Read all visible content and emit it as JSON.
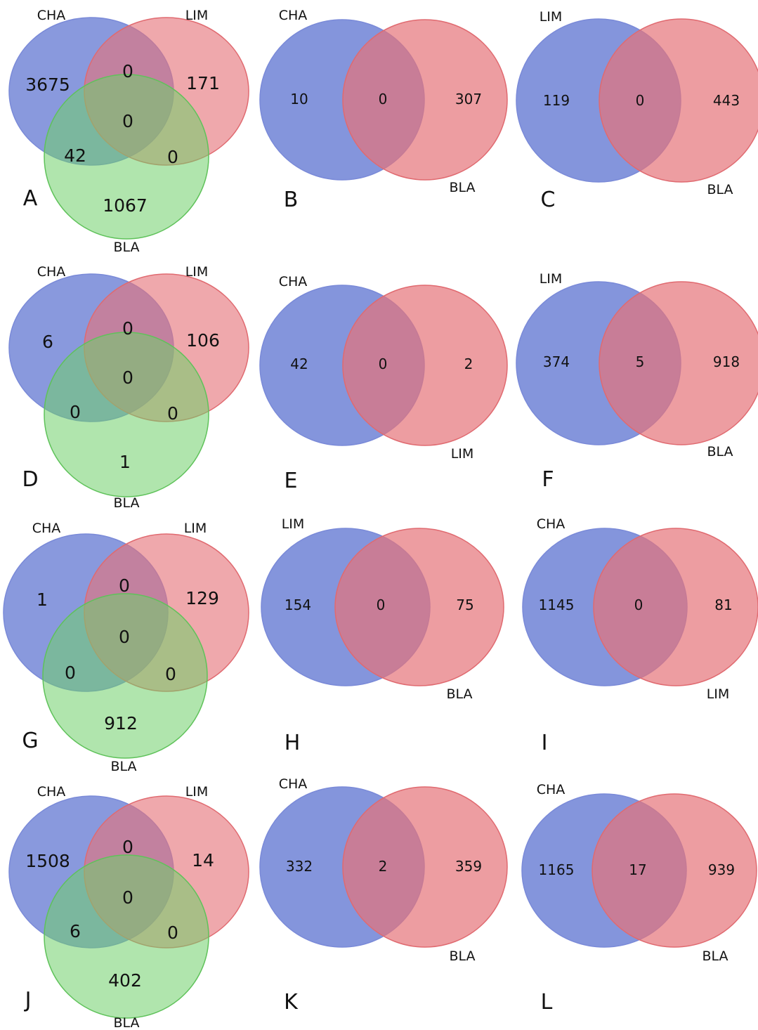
{
  "colors": {
    "blue": "#6f83d6",
    "red": "#e57379",
    "green": "#6fcf6a",
    "blue_stroke": "#7a8ad8",
    "red_stroke": "#e06a70",
    "green_stroke": "#5fc25a"
  },
  "panels": [
    {
      "letter": "A",
      "type": "venn3",
      "sets": [
        "CHA",
        "LIM",
        "BLA"
      ],
      "counts": {
        "a": "3675",
        "b": "171",
        "c": "1067",
        "ab": "0",
        "ac": "42",
        "bc": "0",
        "abc": "0"
      }
    },
    {
      "letter": "B",
      "type": "venn2",
      "sets": [
        "CHA",
        "BLA"
      ],
      "counts": {
        "left": "10",
        "both": "0",
        "right": "307"
      }
    },
    {
      "letter": "C",
      "type": "venn2",
      "sets": [
        "LIM",
        "BLA"
      ],
      "counts": {
        "left": "119",
        "both": "0",
        "right": "443"
      }
    },
    {
      "letter": "D",
      "type": "venn3",
      "sets": [
        "CHA",
        "LIM",
        "BLA"
      ],
      "counts": {
        "a": "6",
        "b": "106",
        "c": "1",
        "ab": "0",
        "ac": "0",
        "bc": "0",
        "abc": "0"
      }
    },
    {
      "letter": "E",
      "type": "venn2",
      "sets": [
        "CHA",
        "LIM"
      ],
      "counts": {
        "left": "42",
        "both": "0",
        "right": "2"
      }
    },
    {
      "letter": "F",
      "type": "venn2",
      "sets": [
        "LIM",
        "BLA"
      ],
      "counts": {
        "left": "374",
        "both": "5",
        "right": "918"
      }
    },
    {
      "letter": "G",
      "type": "venn3",
      "sets": [
        "CHA",
        "LIM",
        "BLA"
      ],
      "counts": {
        "a": "1",
        "b": "129",
        "c": "912",
        "ab": "0",
        "ac": "0",
        "bc": "0",
        "abc": "0"
      }
    },
    {
      "letter": "H",
      "type": "venn2",
      "sets": [
        "LIM",
        "BLA"
      ],
      "counts": {
        "left": "154",
        "both": "0",
        "right": "75"
      }
    },
    {
      "letter": "I",
      "type": "venn2",
      "sets": [
        "CHA",
        "LIM"
      ],
      "counts": {
        "left": "1145",
        "both": "0",
        "right": "81"
      }
    },
    {
      "letter": "J",
      "type": "venn3",
      "sets": [
        "CHA",
        "LIM",
        "BLA"
      ],
      "counts": {
        "a": "1508",
        "b": "14",
        "c": "402",
        "ab": "0",
        "ac": "6",
        "bc": "0",
        "abc": "0"
      }
    },
    {
      "letter": "K",
      "type": "venn2",
      "sets": [
        "CHA",
        "BLA"
      ],
      "counts": {
        "left": "332",
        "both": "2",
        "right": "359"
      }
    },
    {
      "letter": "L",
      "type": "venn2",
      "sets": [
        "CHA",
        "BLA"
      ],
      "counts": {
        "left": "1165",
        "both": "17",
        "right": "939"
      }
    }
  ]
}
